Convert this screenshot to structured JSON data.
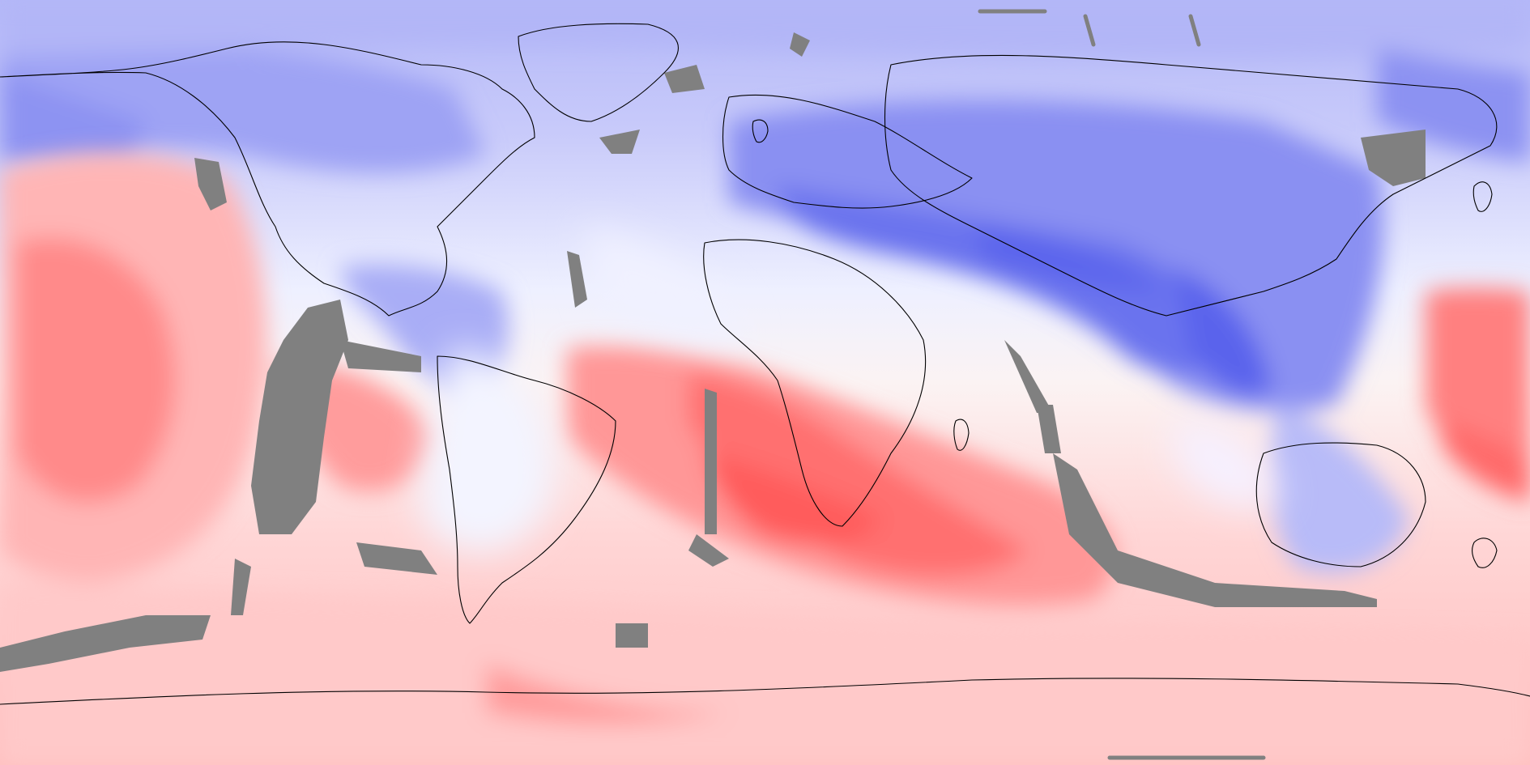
{
  "map": {
    "projection": "equirectangular",
    "center_longitude": 0,
    "coastlines": "black",
    "colormap": {
      "negative": "#4b57ee",
      "neutral": "#f5f5ff",
      "positive": "#ff4a4a",
      "missing": "#808080"
    }
  }
}
